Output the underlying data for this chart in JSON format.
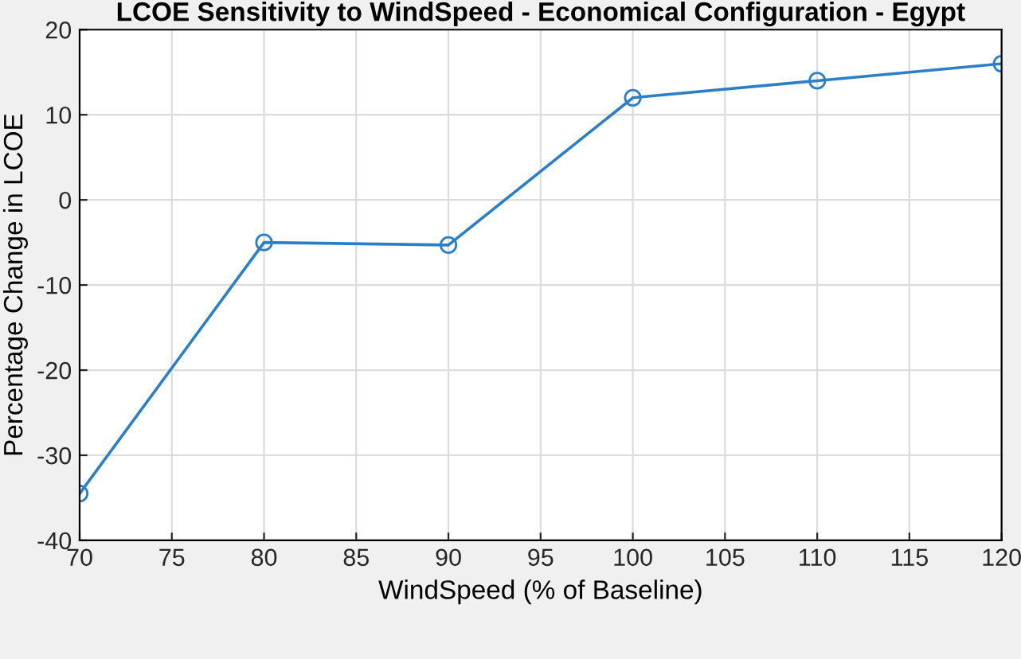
{
  "chart_data": {
    "type": "line",
    "title": "LCOE Sensitivity to WindSpeed - Economical Configuration - Egypt",
    "xlabel": "WindSpeed (% of Baseline)",
    "ylabel": "Percentage Change in LCOE",
    "x": [
      70,
      80,
      90,
      100,
      110,
      120
    ],
    "series": [
      {
        "color": "#2a7fc8",
        "values": [
          -34.5,
          -5,
          -5.3,
          12,
          14,
          16
        ]
      }
    ],
    "xlim": [
      70,
      120
    ],
    "xticks": [
      70,
      75,
      80,
      85,
      90,
      95,
      100,
      105,
      110,
      115,
      120
    ],
    "ylim": [
      -40,
      20
    ],
    "yticks": [
      -40,
      -30,
      -20,
      -10,
      0,
      10,
      20
    ],
    "grid": true,
    "marker": "circle",
    "line_style": "solid"
  }
}
